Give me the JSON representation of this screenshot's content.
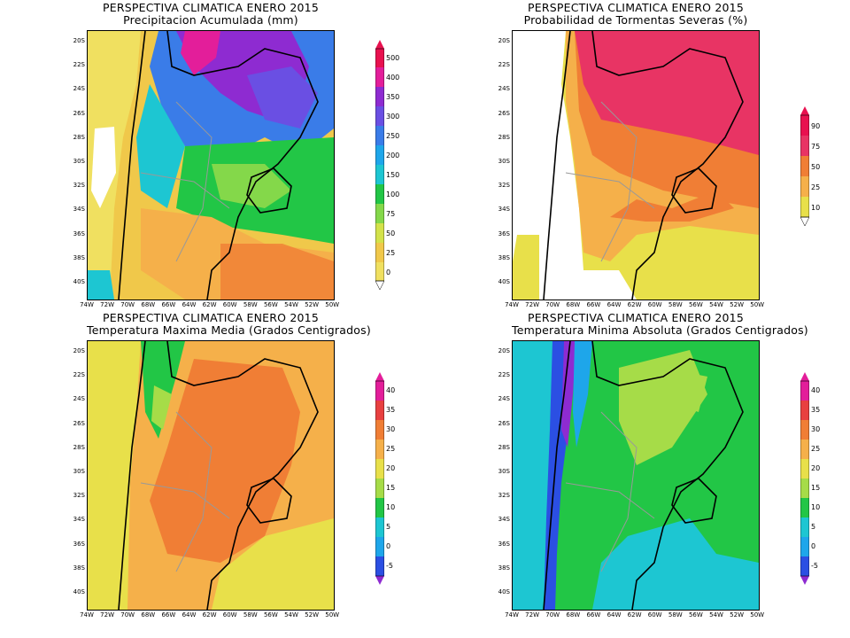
{
  "panels": [
    {
      "title_line1": "PERSPECTIVA CLIMATICA ENERO 2015",
      "title_line2": "Precipitacion Acumulada (mm)",
      "colorbar": {
        "labels": [
          "500",
          "400",
          "350",
          "300",
          "250",
          "200",
          "150",
          "100",
          "75",
          "50",
          "25",
          "0"
        ],
        "colors": [
          "#e8114f",
          "#e31e9a",
          "#8e2bd1",
          "#6a4fe3",
          "#3a7ce8",
          "#1ea6ea",
          "#1dc6d2",
          "#22c646",
          "#84d84a",
          "#d3e24a",
          "#f0c84a",
          "#f0e060"
        ]
      }
    },
    {
      "title_line1": "PERSPECTIVA CLIMATICA ENERO 2015",
      "title_line2": "Probabilidad de Tormentas Severas (%)",
      "colorbar": {
        "labels": [
          "90",
          "75",
          "50",
          "25",
          "10"
        ],
        "colors": [
          "#e8114f",
          "#e83464",
          "#f07e35",
          "#f5b04a",
          "#e8e04a",
          "#ffffff"
        ]
      }
    },
    {
      "title_line1": "PERSPECTIVA CLIMATICA ENERO 2015",
      "title_line2": "Temperatura Maxima Media (Grados Centigrados)",
      "colorbar": {
        "labels": [
          "40",
          "35",
          "30",
          "25",
          "20",
          "15",
          "10",
          "5",
          "0",
          "-5"
        ],
        "colors": [
          "#e31e9a",
          "#e84040",
          "#f07e35",
          "#f5b04a",
          "#e8e04a",
          "#a6dc48",
          "#22c646",
          "#1dc6d2",
          "#1ea6ea",
          "#2b4fe3",
          "#8e2bd1"
        ]
      }
    },
    {
      "title_line1": "PERSPECTIVA CLIMATICA ENERO 2015",
      "title_line2": "Temperatura Minima Absoluta (Grados Centigrados)",
      "colorbar": {
        "labels": [
          "40",
          "35",
          "30",
          "25",
          "20",
          "15",
          "10",
          "5",
          "0",
          "-5"
        ],
        "colors": [
          "#e31e9a",
          "#e84040",
          "#f07e35",
          "#f5b04a",
          "#e8e04a",
          "#a6dc48",
          "#22c646",
          "#1dc6d2",
          "#1ea6ea",
          "#2b4fe3",
          "#8e2bd1"
        ]
      }
    }
  ],
  "lat_labels": [
    "20S",
    "22S",
    "24S",
    "26S",
    "28S",
    "30S",
    "32S",
    "34S",
    "36S",
    "38S",
    "40S"
  ],
  "lon_labels": [
    "74W",
    "72W",
    "70W",
    "68W",
    "66W",
    "64W",
    "62W",
    "60W",
    "58W",
    "56W",
    "54W",
    "52W",
    "50W"
  ]
}
